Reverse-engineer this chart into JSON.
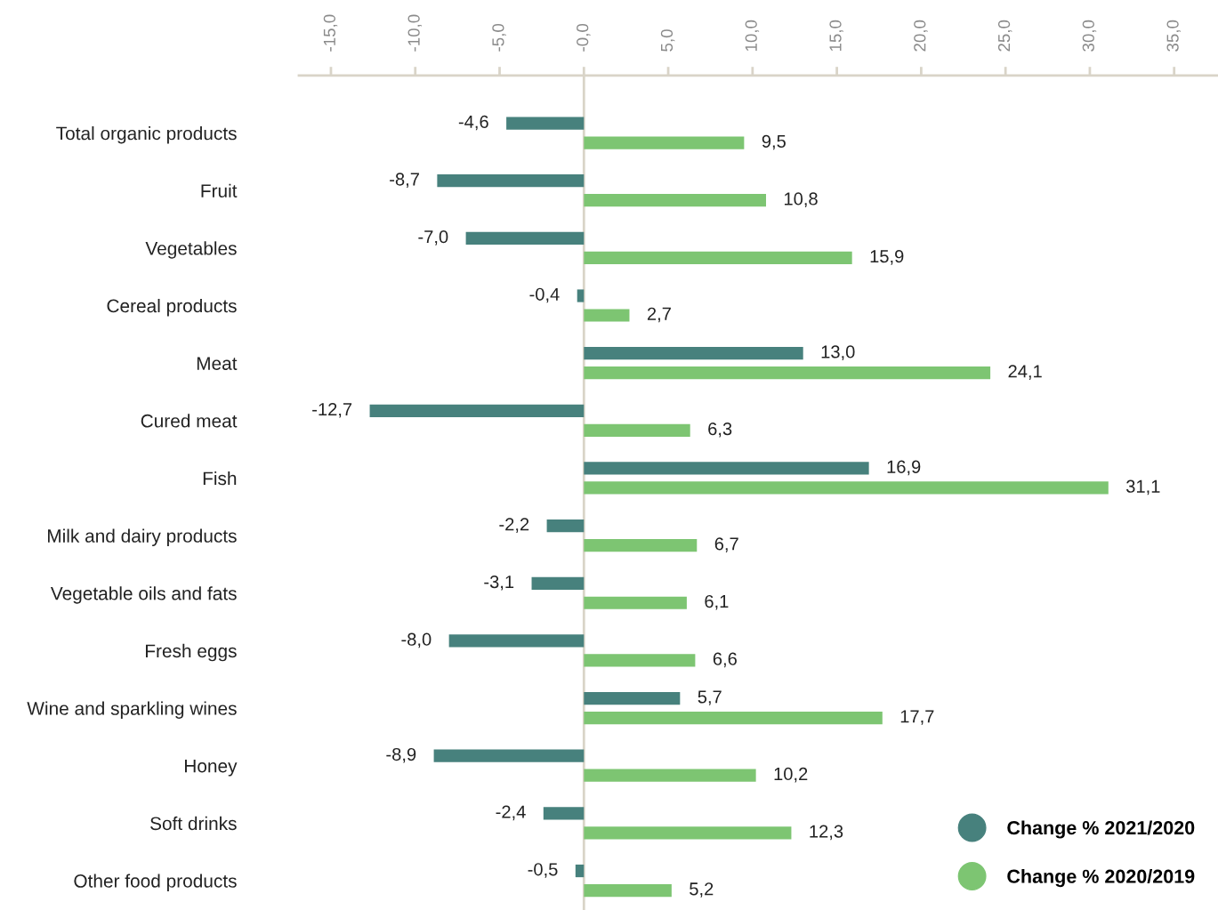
{
  "chart_data": {
    "type": "bar",
    "orientation": "horizontal",
    "categories": [
      "Total organic products",
      "Fruit",
      "Vegetables",
      "Cereal products",
      "Meat",
      "Cured meat",
      "Fish",
      "Milk and dairy products",
      "Vegetable oils and fats",
      "Fresh eggs",
      "Wine and sparkling wines",
      "Honey",
      "Soft drinks",
      "Other food products"
    ],
    "series": [
      {
        "name": "Change % 2021/2020",
        "color": "#47817d",
        "values": [
          -4.6,
          -8.7,
          -7.0,
          -0.4,
          13.0,
          -12.7,
          16.9,
          -2.2,
          -3.1,
          -8.0,
          5.7,
          -8.9,
          -2.4,
          -0.5
        ],
        "value_labels": [
          "-4,6",
          "-8,7",
          "-7,0",
          "-0,4",
          "13,0",
          "-12,7",
          "16,9",
          "-2,2",
          "-3,1",
          "-8,0",
          "5,7",
          "-8,9",
          "-2,4",
          "-0,5"
        ]
      },
      {
        "name": "Change % 2020/2019",
        "color": "#7dc572",
        "values": [
          9.5,
          10.8,
          15.9,
          2.7,
          24.1,
          6.3,
          31.1,
          6.7,
          6.1,
          6.6,
          17.7,
          10.2,
          12.3,
          5.2
        ],
        "value_labels": [
          "9,5",
          "10,8",
          "15,9",
          "2,7",
          "24,1",
          "6,3",
          "31,1",
          "6,7",
          "6,1",
          "6,6",
          "17,7",
          "10,2",
          "12,3",
          "5,2"
        ]
      }
    ],
    "xlim": [
      -16.9,
      37.6
    ],
    "xticks": [
      {
        "value": -15,
        "label": "-15,0"
      },
      {
        "value": -10,
        "label": "-10,0"
      },
      {
        "value": -5,
        "label": "-5,0"
      },
      {
        "value": 0,
        "label": "-0,0"
      },
      {
        "value": 5,
        "label": "5,0"
      },
      {
        "value": 10,
        "label": "10,0"
      },
      {
        "value": 15,
        "label": "15,0"
      },
      {
        "value": 20,
        "label": "20,0"
      },
      {
        "value": 25,
        "label": "25,0"
      },
      {
        "value": 30,
        "label": "30,0"
      },
      {
        "value": 35,
        "label": "35,0"
      }
    ],
    "ref_lines": [
      {
        "axis": "x",
        "value": 0,
        "color": "#d9d4c8"
      }
    ],
    "legend": "bottom right"
  }
}
